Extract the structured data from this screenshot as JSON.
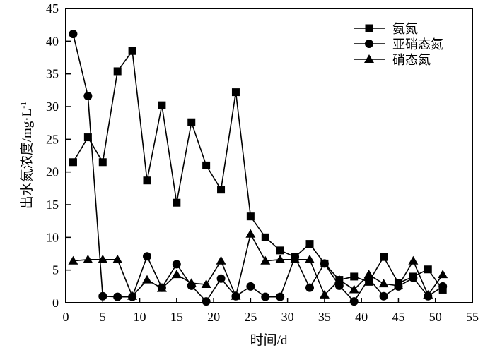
{
  "chart_data": {
    "type": "line",
    "title": "",
    "xlabel": "时间/d",
    "ylabel": "出水氮浓度/mg·L",
    "ylabel_superscript": "-1",
    "xlim": [
      0,
      55
    ],
    "ylim": [
      0,
      45
    ],
    "xticks": [
      0,
      5,
      10,
      15,
      20,
      25,
      30,
      35,
      40,
      45,
      50,
      55
    ],
    "yticks": [
      0,
      5,
      10,
      15,
      20,
      25,
      30,
      35,
      40,
      45
    ],
    "grid": false,
    "legend_position": "top-right",
    "x": [
      1,
      3,
      5,
      7,
      9,
      11,
      13,
      15,
      17,
      19,
      21,
      23,
      25,
      27,
      29,
      31,
      33,
      35,
      37,
      39,
      41,
      43,
      45,
      47,
      49,
      51
    ],
    "series": [
      {
        "name": "氨氮",
        "marker": "square",
        "values": [
          21.5,
          25.3,
          21.5,
          35.4,
          38.5,
          18.7,
          30.2,
          15.3,
          27.6,
          21.0,
          17.3,
          32.2,
          13.2,
          10.0,
          8.0,
          7.0,
          9.0,
          6.0,
          3.5,
          4.0,
          3.2,
          7.0,
          3.0,
          4.0,
          5.1,
          2.0
        ]
      },
      {
        "name": "亚硝态氮",
        "marker": "circle",
        "values": [
          41.1,
          31.6,
          1.0,
          0.9,
          0.9,
          7.1,
          2.3,
          5.9,
          2.6,
          0.2,
          3.7,
          1.0,
          2.5,
          0.9,
          0.9,
          7.0,
          2.3,
          6.0,
          2.6,
          0.2,
          3.7,
          1.0,
          2.5,
          3.8,
          1.0,
          2.5
        ]
      },
      {
        "name": "硝态氮",
        "marker": "triangle",
        "values": [
          6.4,
          6.6,
          6.6,
          6.6,
          1.0,
          3.5,
          2.2,
          4.3,
          3.0,
          2.8,
          6.4,
          1.0,
          10.5,
          6.4,
          6.6,
          6.6,
          6.6,
          1.2,
          3.5,
          2.0,
          4.3,
          2.9,
          2.6,
          6.4,
          1.2,
          4.3
        ]
      }
    ],
    "colors": {
      "line": "#000000",
      "marker": "#000000"
    }
  }
}
